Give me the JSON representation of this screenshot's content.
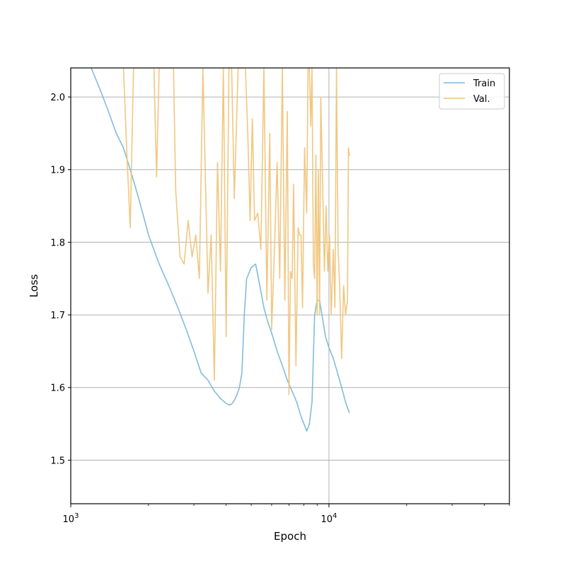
{
  "chart_data": {
    "type": "line",
    "xlabel": "Epoch",
    "ylabel": "Loss",
    "xscale": "log",
    "xlim": [
      1000,
      50000
    ],
    "ylim": [
      1.44,
      2.04
    ],
    "x_ticks": [
      {
        "value": 1000,
        "base": "10",
        "exp": "3"
      },
      {
        "value": 10000,
        "base": "10",
        "exp": "4"
      }
    ],
    "y_ticks": [
      "1.5",
      "1.6",
      "1.7",
      "1.8",
      "1.9",
      "2.0"
    ],
    "grid": {
      "y": true,
      "x_at": [
        10000
      ]
    },
    "legend_position": "top-right",
    "colors": {
      "train": "#7ab8d9",
      "val": "#f0c47a"
    },
    "series": [
      {
        "name": "Train",
        "color": "#7ab8d9",
        "x": [
          1200,
          1300,
          1400,
          1500,
          1600,
          1700,
          1800,
          1900,
          2000,
          2200,
          2400,
          2600,
          2800,
          3000,
          3200,
          3400,
          3600,
          3800,
          4000,
          4100,
          4200,
          4300,
          4400,
          4500,
          4600,
          4700,
          4800,
          5000,
          5200,
          5400,
          5600,
          5800,
          6000,
          6300,
          6600,
          6900,
          7200,
          7500,
          7800,
          8000,
          8200,
          8400,
          8600,
          8800,
          9000,
          9200,
          9400,
          9700,
          10000,
          10400,
          10800,
          11200,
          11600,
          12000
        ],
        "y": [
          2.04,
          2.01,
          1.98,
          1.95,
          1.93,
          1.9,
          1.87,
          1.84,
          1.81,
          1.77,
          1.74,
          1.71,
          1.68,
          1.65,
          1.62,
          1.61,
          1.595,
          1.585,
          1.578,
          1.576,
          1.577,
          1.582,
          1.59,
          1.6,
          1.62,
          1.7,
          1.75,
          1.765,
          1.77,
          1.74,
          1.71,
          1.69,
          1.675,
          1.65,
          1.63,
          1.61,
          1.595,
          1.58,
          1.56,
          1.55,
          1.54,
          1.55,
          1.58,
          1.7,
          1.72,
          1.72,
          1.7,
          1.67,
          1.655,
          1.64,
          1.62,
          1.6,
          1.58,
          1.565
        ]
      },
      {
        "name": "Val.",
        "color": "#f0c47a",
        "x": [
          1600,
          1650,
          1700,
          1750,
          1800,
          1900,
          2000,
          2100,
          2150,
          2200,
          2300,
          2400,
          2500,
          2550,
          2650,
          2750,
          2850,
          2950,
          3050,
          3150,
          3250,
          3400,
          3500,
          3600,
          3700,
          3800,
          3900,
          4000,
          4100,
          4200,
          4300,
          4450,
          4600,
          4750,
          4850,
          4950,
          5050,
          5150,
          5300,
          5450,
          5600,
          5750,
          5900,
          6000,
          6150,
          6300,
          6450,
          6600,
          6750,
          6900,
          7000,
          7100,
          7200,
          7300,
          7450,
          7600,
          7700,
          7800,
          7900,
          8050,
          8200,
          8300,
          8400,
          8500,
          8600,
          8700,
          8800,
          8900,
          9000,
          9100,
          9200,
          9300,
          9450,
          9600,
          9750,
          9900,
          10050,
          10200,
          10400,
          10550,
          10700,
          10850,
          11000,
          11200,
          11400,
          11600,
          11800,
          11900,
          12000,
          12100
        ],
        "y": [
          2.04,
          1.92,
          1.82,
          2.04,
          2.04,
          2.04,
          2.04,
          2.04,
          1.89,
          2.04,
          2.04,
          2.04,
          2.04,
          1.87,
          1.78,
          1.77,
          1.83,
          1.78,
          1.81,
          1.75,
          2.04,
          1.73,
          1.81,
          1.61,
          1.91,
          1.76,
          2.04,
          1.67,
          2.04,
          2.04,
          1.86,
          2.04,
          2.04,
          2.04,
          1.95,
          1.83,
          1.97,
          1.83,
          1.84,
          1.79,
          2.04,
          1.72,
          1.95,
          1.68,
          1.79,
          1.91,
          1.75,
          2.04,
          1.72,
          1.98,
          1.59,
          1.76,
          1.75,
          1.88,
          1.63,
          1.82,
          1.81,
          1.81,
          1.71,
          1.93,
          1.84,
          2.04,
          2.04,
          1.96,
          2.04,
          1.77,
          1.75,
          1.92,
          1.7,
          1.9,
          1.7,
          2.0,
          1.88,
          1.76,
          1.85,
          1.76,
          1.81,
          1.7,
          1.79,
          1.71,
          2.04,
          1.79,
          1.74,
          1.64,
          1.74,
          1.7,
          1.72,
          1.93,
          1.92,
          1.92
        ]
      }
    ]
  }
}
